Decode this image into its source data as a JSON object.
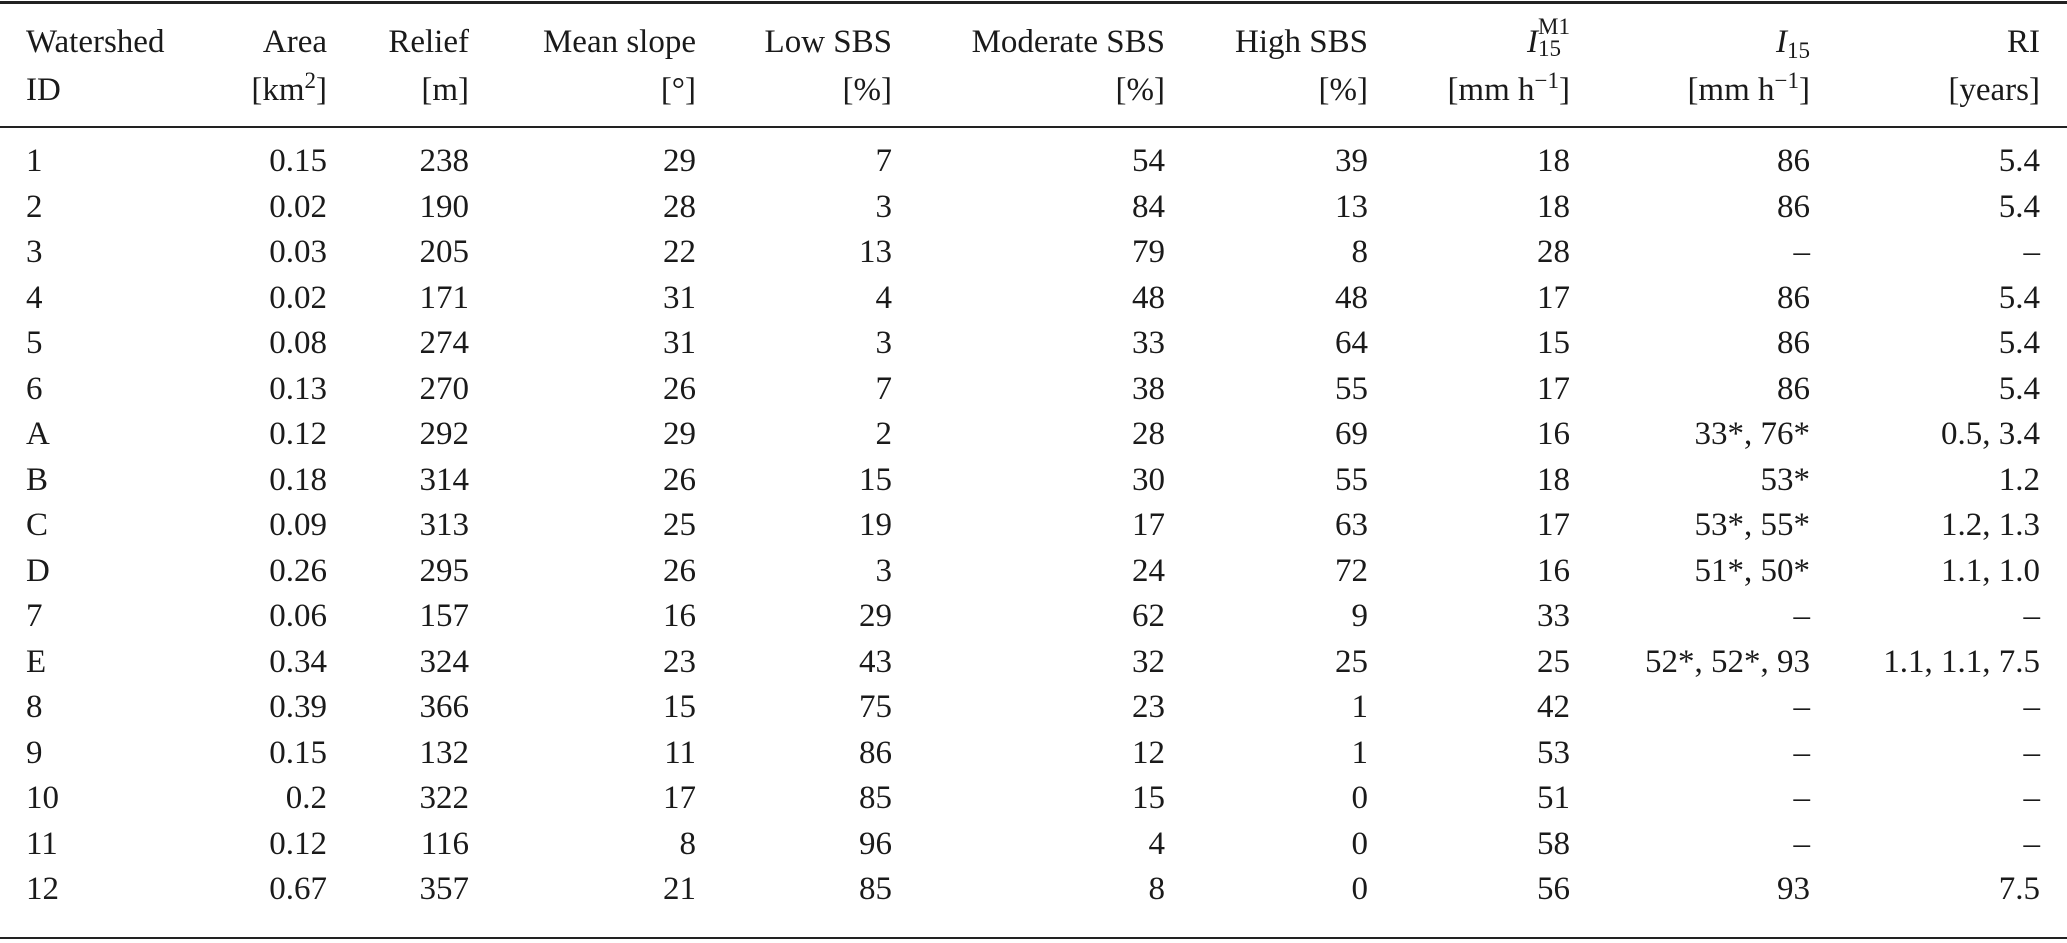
{
  "table": {
    "headers": [
      {
        "line1": "Watershed",
        "line2": "ID"
      },
      {
        "line1": "Area",
        "line2": "[km",
        "line2_sup": "2",
        "line2_end": "]"
      },
      {
        "line1": "Relief",
        "line2": "[m]"
      },
      {
        "line1": "Mean slope",
        "line2": "[°]"
      },
      {
        "line1": "Low SBS",
        "line2": "[%]"
      },
      {
        "line1": "Moderate SBS",
        "line2": "[%]"
      },
      {
        "line1": "High SBS",
        "line2": "[%]"
      },
      {
        "line1": "I",
        "line1_sub": "15",
        "line1_sup": "M1",
        "line2": "[mm h",
        "line2_sup": "−1",
        "line2_end": "]"
      },
      {
        "line1": "I",
        "line1_sub": "15",
        "line2": "[mm h",
        "line2_sup": "−1",
        "line2_end": "]"
      },
      {
        "line1": "RI",
        "line2": "[years]"
      }
    ],
    "rows": [
      [
        "1",
        "0.15",
        "238",
        "29",
        "7",
        "54",
        "39",
        "18",
        "86",
        "5.4"
      ],
      [
        "2",
        "0.02",
        "190",
        "28",
        "3",
        "84",
        "13",
        "18",
        "86",
        "5.4"
      ],
      [
        "3",
        "0.03",
        "205",
        "22",
        "13",
        "79",
        "8",
        "28",
        "–",
        "–"
      ],
      [
        "4",
        "0.02",
        "171",
        "31",
        "4",
        "48",
        "48",
        "17",
        "86",
        "5.4"
      ],
      [
        "5",
        "0.08",
        "274",
        "31",
        "3",
        "33",
        "64",
        "15",
        "86",
        "5.4"
      ],
      [
        "6",
        "0.13",
        "270",
        "26",
        "7",
        "38",
        "55",
        "17",
        "86",
        "5.4"
      ],
      [
        "A",
        "0.12",
        "292",
        "29",
        "2",
        "28",
        "69",
        "16",
        "33*, 76*",
        "0.5, 3.4"
      ],
      [
        "B",
        "0.18",
        "314",
        "26",
        "15",
        "30",
        "55",
        "18",
        "53*",
        "1.2"
      ],
      [
        "C",
        "0.09",
        "313",
        "25",
        "19",
        "17",
        "63",
        "17",
        "53*, 55*",
        "1.2, 1.3"
      ],
      [
        "D",
        "0.26",
        "295",
        "26",
        "3",
        "24",
        "72",
        "16",
        "51*, 50*",
        "1.1, 1.0"
      ],
      [
        "7",
        "0.06",
        "157",
        "16",
        "29",
        "62",
        "9",
        "33",
        "–",
        "–"
      ],
      [
        "E",
        "0.34",
        "324",
        "23",
        "43",
        "32",
        "25",
        "25",
        "52*, 52*, 93",
        "1.1, 1.1, 7.5"
      ],
      [
        "8",
        "0.39",
        "366",
        "15",
        "75",
        "23",
        "1",
        "42",
        "–",
        "–"
      ],
      [
        "9",
        "0.15",
        "132",
        "11",
        "86",
        "12",
        "1",
        "53",
        "–",
        "–"
      ],
      [
        "10",
        "0.2",
        "322",
        "17",
        "85",
        "15",
        "0",
        "51",
        "–",
        "–"
      ],
      [
        "11",
        "0.12",
        "116",
        "8",
        "96",
        "4",
        "0",
        "58",
        "–",
        "–"
      ],
      [
        "12",
        "0.67",
        "357",
        "21",
        "85",
        "8",
        "0",
        "56",
        "93",
        "7.5"
      ]
    ]
  }
}
